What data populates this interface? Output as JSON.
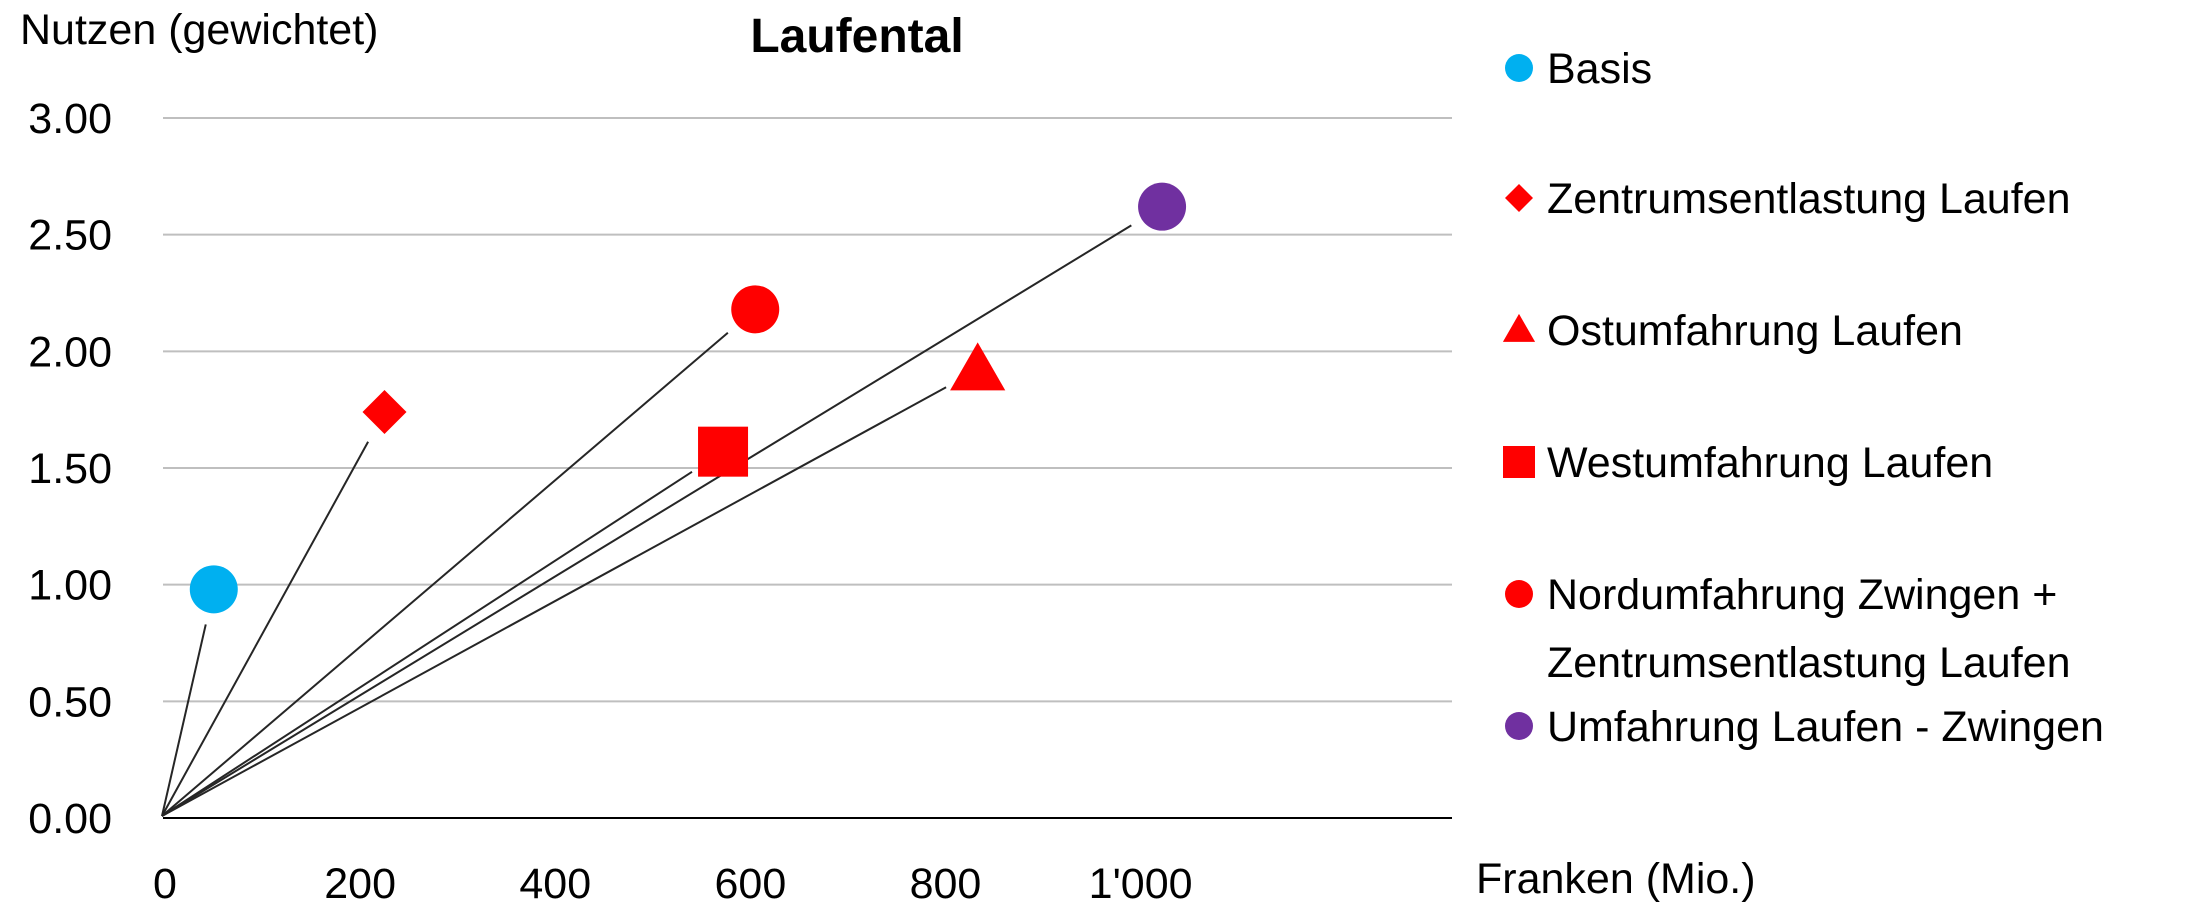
{
  "chart_data": {
    "type": "scatter",
    "title": "Laufental",
    "ylabel": "Nutzen (gewichtet)",
    "xlabel": "Franken (Mio.)",
    "xlim": [
      0,
      1100
    ],
    "ylim": [
      0,
      3
    ],
    "x_ticks": [
      {
        "value": 0,
        "label": "0"
      },
      {
        "value": 200,
        "label": "200"
      },
      {
        "value": 400,
        "label": "400"
      },
      {
        "value": 600,
        "label": "600"
      },
      {
        "value": 800,
        "label": "800"
      },
      {
        "value": 1000,
        "label": "1'000"
      }
    ],
    "y_ticks": [
      {
        "value": 0,
        "label": "0.00"
      },
      {
        "value": 0.5,
        "label": "0.50"
      },
      {
        "value": 1.0,
        "label": "1.00"
      },
      {
        "value": 1.5,
        "label": "1.50"
      },
      {
        "value": 2.0,
        "label": "2.00"
      },
      {
        "value": 2.5,
        "label": "2.50"
      },
      {
        "value": 3.0,
        "label": "3.00"
      }
    ],
    "grid": "horizontal",
    "legend_position": "right",
    "rays_from_origin": true,
    "series": [
      {
        "name": "Basis",
        "marker": "circle",
        "color": "#00B0F0",
        "x": 50,
        "y": 0.98,
        "legend_lines": [
          "Basis"
        ]
      },
      {
        "name": "Zentrumsentlastung Laufen",
        "marker": "diamond",
        "color": "#FF0000",
        "x": 225,
        "y": 1.74,
        "legend_lines": [
          "Zentrumsentlastung Laufen"
        ]
      },
      {
        "name": "Ostumfahrung Laufen",
        "marker": "triangle",
        "color": "#FF0000",
        "x": 833,
        "y": 1.92,
        "legend_lines": [
          "Ostumfahrung Laufen"
        ]
      },
      {
        "name": "Westumfahrung Laufen",
        "marker": "square",
        "color": "#FF0000",
        "x": 572,
        "y": 1.57,
        "legend_lines": [
          "Westumfahrung Laufen"
        ]
      },
      {
        "name": "Nordumfahrung Zwingen + Zentrumsentlastung Laufen",
        "marker": "circle",
        "color": "#FF0000",
        "x": 605,
        "y": 2.18,
        "legend_lines": [
          "Nordumfahrung Zwingen +",
          "Zentrumsentlastung Laufen"
        ]
      },
      {
        "name": "Umfahrung Laufen - Zwingen",
        "marker": "circle",
        "color": "#7030A0",
        "x": 1022,
        "y": 2.62,
        "legend_lines": [
          "Umfahrung Laufen - Zwingen"
        ]
      }
    ]
  }
}
